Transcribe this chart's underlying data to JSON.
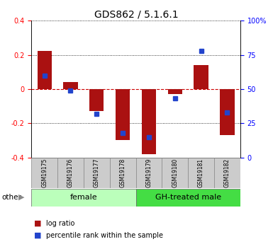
{
  "title": "GDS862 / 5.1.6.1",
  "samples": [
    "GSM19175",
    "GSM19176",
    "GSM19177",
    "GSM19178",
    "GSM19179",
    "GSM19180",
    "GSM19181",
    "GSM19182"
  ],
  "log_ratio": [
    0.225,
    0.04,
    -0.13,
    -0.3,
    -0.38,
    -0.03,
    0.14,
    -0.27
  ],
  "percentile_rank": [
    60,
    49,
    32,
    18,
    15,
    43,
    78,
    33
  ],
  "groups": [
    {
      "label": "female",
      "start": 0,
      "end": 4,
      "color": "#bbffbb"
    },
    {
      "label": "GH-treated male",
      "start": 4,
      "end": 8,
      "color": "#44dd44"
    }
  ],
  "ylim": [
    -0.4,
    0.4
  ],
  "right_ylim": [
    0,
    100
  ],
  "bar_color": "#aa1111",
  "dot_color": "#2244cc",
  "zero_line_color": "#cc0000",
  "label_area_color": "#cccccc",
  "other_label": "other",
  "legend_log": "log ratio",
  "legend_pct": "percentile rank within the sample",
  "title_fontsize": 10,
  "tick_fontsize": 7,
  "sample_fontsize": 5.5,
  "group_fontsize": 8,
  "legend_fontsize": 7
}
